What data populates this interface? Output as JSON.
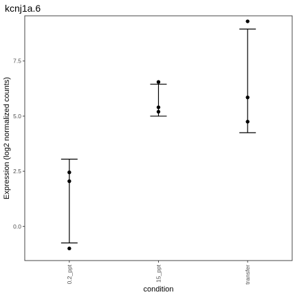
{
  "chart_data": {
    "type": "scatter",
    "title": "kcnj1a.6",
    "xlabel": "condition",
    "ylabel": "Expression (log2 normalized counts)",
    "categories": [
      "0.2_ppt",
      "15_ppt",
      "transfer"
    ],
    "ylim": [
      -1.55,
      9.55
    ],
    "yticks": [
      0.0,
      2.5,
      5.0,
      7.5
    ],
    "ytick_labels": [
      "0.0",
      "2.5",
      "5.0",
      "7.5"
    ],
    "grid": false,
    "points": [
      {
        "category": "0.2_ppt",
        "values": [
          2.45,
          2.05,
          -1.0
        ]
      },
      {
        "category": "15_ppt",
        "values": [
          6.55,
          5.4,
          5.2
        ]
      },
      {
        "category": "transfer",
        "values": [
          9.3,
          5.85,
          4.75
        ]
      }
    ],
    "error_bars": [
      {
        "category": "0.2_ppt",
        "low": -0.75,
        "high": 3.05
      },
      {
        "category": "15_ppt",
        "low": 5.0,
        "high": 6.45
      },
      {
        "category": "transfer",
        "low": 4.25,
        "high": 8.95
      }
    ]
  }
}
